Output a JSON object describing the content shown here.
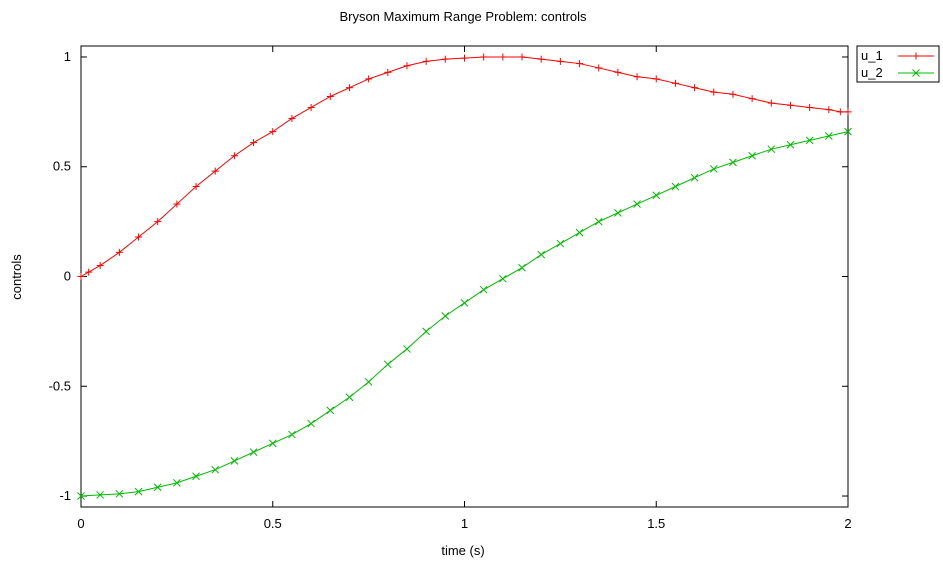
{
  "chart_data": {
    "type": "line",
    "title": "Bryson Maximum Range Problem: controls",
    "xlabel": "time (s)",
    "ylabel": "controls",
    "xlim": [
      0,
      2
    ],
    "ylim": [
      -1.05,
      1.05
    ],
    "x_ticks": [
      {
        "value": 0,
        "label": "0"
      },
      {
        "value": 0.5,
        "label": "0.5"
      },
      {
        "value": 1,
        "label": "1"
      },
      {
        "value": 1.5,
        "label": "1.5"
      },
      {
        "value": 2,
        "label": "2"
      }
    ],
    "y_ticks": [
      {
        "value": -1,
        "label": "-1"
      },
      {
        "value": -0.5,
        "label": "-0.5"
      },
      {
        "value": 0,
        "label": "0"
      },
      {
        "value": 0.5,
        "label": "0.5"
      },
      {
        "value": 1,
        "label": "1"
      }
    ],
    "grid": false,
    "legend": "outside-top-right",
    "series": [
      {
        "name": "u_1",
        "color": "#ff0000",
        "marker": "plus",
        "x": [
          0,
          0.02,
          0.05,
          0.1,
          0.15,
          0.2,
          0.25,
          0.3,
          0.35,
          0.4,
          0.45,
          0.5,
          0.55,
          0.6,
          0.65,
          0.7,
          0.75,
          0.8,
          0.85,
          0.9,
          0.95,
          1.0,
          1.05,
          1.1,
          1.15,
          1.2,
          1.25,
          1.3,
          1.35,
          1.4,
          1.45,
          1.5,
          1.55,
          1.6,
          1.65,
          1.7,
          1.75,
          1.8,
          1.85,
          1.9,
          1.95,
          1.98,
          2.0
        ],
        "y": [
          0,
          0.02,
          0.05,
          0.11,
          0.18,
          0.25,
          0.33,
          0.41,
          0.48,
          0.55,
          0.61,
          0.66,
          0.72,
          0.77,
          0.82,
          0.86,
          0.9,
          0.93,
          0.96,
          0.98,
          0.99,
          0.995,
          1.0,
          1.0,
          1.0,
          0.99,
          0.98,
          0.97,
          0.95,
          0.93,
          0.91,
          0.9,
          0.88,
          0.86,
          0.84,
          0.83,
          0.81,
          0.79,
          0.78,
          0.77,
          0.76,
          0.75,
          0.75
        ]
      },
      {
        "name": "u_2",
        "color": "#00bb00",
        "marker": "cross",
        "x": [
          0,
          0.05,
          0.1,
          0.15,
          0.2,
          0.25,
          0.3,
          0.35,
          0.4,
          0.45,
          0.5,
          0.55,
          0.6,
          0.65,
          0.7,
          0.75,
          0.8,
          0.85,
          0.9,
          0.95,
          1.0,
          1.05,
          1.1,
          1.15,
          1.2,
          1.25,
          1.3,
          1.35,
          1.4,
          1.45,
          1.5,
          1.55,
          1.6,
          1.65,
          1.7,
          1.75,
          1.8,
          1.85,
          1.9,
          1.95,
          2.0
        ],
        "y": [
          -1.0,
          -0.995,
          -0.99,
          -0.98,
          -0.96,
          -0.94,
          -0.91,
          -0.88,
          -0.84,
          -0.8,
          -0.76,
          -0.72,
          -0.67,
          -0.61,
          -0.55,
          -0.48,
          -0.4,
          -0.33,
          -0.25,
          -0.18,
          -0.12,
          -0.06,
          -0.01,
          0.04,
          0.1,
          0.15,
          0.2,
          0.25,
          0.29,
          0.33,
          0.37,
          0.41,
          0.45,
          0.49,
          0.52,
          0.55,
          0.58,
          0.6,
          0.62,
          0.64,
          0.66
        ]
      }
    ]
  }
}
